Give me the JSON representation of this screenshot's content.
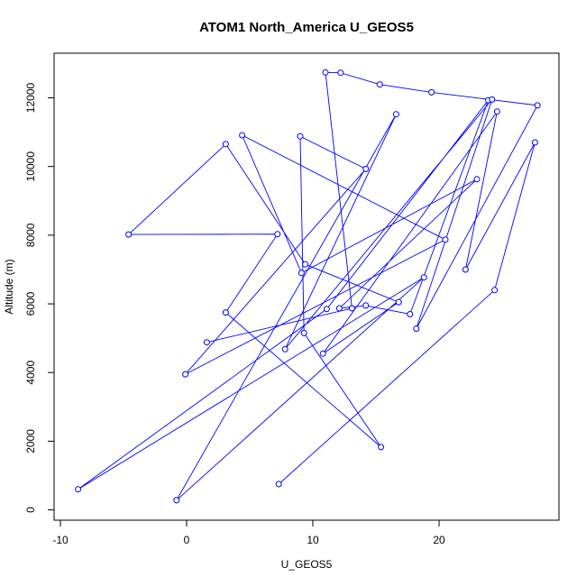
{
  "chart_data": {
    "type": "line",
    "title": "ATOM1 North_America U_GEOS5",
    "xlabel": "U_GEOS5",
    "ylabel": "Altitude (m)",
    "xlim": [
      -10.5,
      29.5
    ],
    "ylim": [
      -300,
      13300
    ],
    "xticks": [
      -10,
      0,
      10,
      20
    ],
    "yticks": [
      0,
      2000,
      4000,
      6000,
      8000,
      10000,
      12000
    ],
    "grid": false,
    "legend": "none",
    "color": "#0000ff",
    "series": [
      {
        "x": [
          7.3,
          24.4,
          27.6,
          22.1,
          24.6,
          10.8,
          16.8,
          9.4,
          3.1,
          -4.6,
          7.2,
          3.1,
          15.4,
          9.3,
          9.0,
          14.2,
          -0.1,
          20.5,
          4.4,
          9.1,
          23.0,
          12.1,
          14.2,
          17.7,
          23.9,
          11.1,
          -8.6,
          18.8,
          -0.8,
          16.6,
          7.8,
          24.2,
          18.2,
          27.8,
          19.4,
          15.3,
          12.2,
          11.0,
          13.1,
          1.6
        ],
        "y": [
          750,
          6400,
          10700,
          7000,
          11600,
          4550,
          6050,
          7150,
          10650,
          8020,
          8030,
          5750,
          1830,
          5150,
          10880,
          9930,
          3950,
          7870,
          10910,
          6900,
          9630,
          5870,
          5950,
          5700,
          11930,
          5850,
          600,
          6770,
          280,
          11520,
          4680,
          11950,
          5280,
          11780,
          12160,
          12390,
          12730,
          12740,
          5870,
          4880
        ]
      }
    ]
  }
}
